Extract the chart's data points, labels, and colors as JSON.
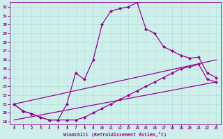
{
  "xlabel": "Windchill (Refroidissement éolien,°C)",
  "bg_color": "#cff0ea",
  "line_color": "#990099",
  "x_min": 0,
  "x_max": 23,
  "y_min": 19,
  "y_max": 32,
  "x_ticks": [
    0,
    1,
    2,
    3,
    4,
    5,
    6,
    7,
    8,
    9,
    10,
    11,
    12,
    13,
    14,
    15,
    16,
    17,
    18,
    19,
    20,
    21,
    22,
    23
  ],
  "y_ticks": [
    19,
    20,
    21,
    22,
    23,
    24,
    25,
    26,
    27,
    28,
    29,
    30,
    31,
    32
  ],
  "series1_x": [
    0,
    1,
    2,
    3,
    4,
    5,
    6,
    7,
    8,
    9,
    10,
    11,
    12,
    13,
    14,
    15,
    16,
    17,
    18,
    19,
    20,
    21,
    22,
    23
  ],
  "series1_y": [
    21.0,
    20.2,
    19.9,
    19.5,
    19.2,
    19.2,
    21.0,
    24.5,
    23.8,
    26.0,
    30.0,
    31.5,
    31.8,
    32.0,
    32.5,
    29.5,
    29.0,
    27.5,
    27.0,
    26.5,
    26.2,
    26.3,
    24.5,
    24.0
  ],
  "series2_x": [
    0,
    1,
    2,
    3,
    4,
    5,
    6,
    7,
    8,
    9,
    10,
    11,
    12,
    13,
    14,
    15,
    16,
    17,
    18,
    19,
    20,
    21,
    22,
    23
  ],
  "series2_y": [
    21.0,
    20.2,
    19.9,
    19.5,
    19.2,
    19.2,
    19.2,
    19.2,
    19.5,
    20.0,
    20.5,
    21.0,
    21.5,
    22.0,
    22.5,
    23.0,
    23.5,
    24.0,
    24.5,
    25.0,
    25.2,
    25.5,
    23.8,
    23.5
  ],
  "series3_x": [
    0,
    23
  ],
  "series3_y": [
    21.0,
    26.0
  ],
  "series4_x": [
    0,
    23
  ],
  "series4_y": [
    19.2,
    23.5
  ]
}
